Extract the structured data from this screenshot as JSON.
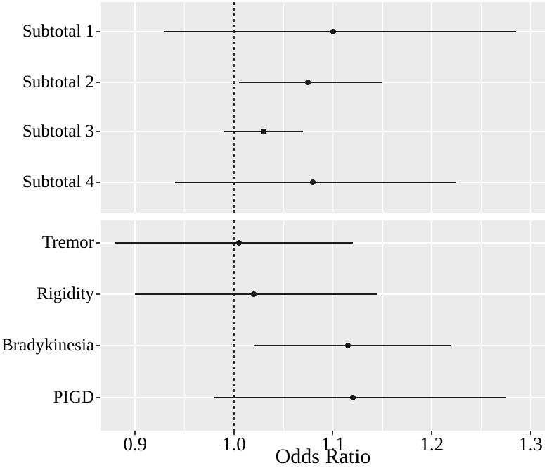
{
  "chart_data": {
    "type": "scatter",
    "subtype": "forest-plot-dot-with-ci",
    "title": "",
    "xlabel": "Odds Ratio",
    "ylabel": "",
    "x_axis": {
      "min": 0.865,
      "max": 1.315,
      "major_ticks": [
        0.9,
        1.0,
        1.1,
        1.2,
        1.3
      ],
      "minor_ticks": [
        0.95,
        1.05,
        1.15,
        1.25
      ],
      "tick_labels": [
        "0.9",
        "1.0",
        "1.1",
        "1.2",
        "1.3"
      ]
    },
    "reference_line_x": 1.0,
    "grid": "major-and-minor-vertical, major-horizontal",
    "legend": "none",
    "panels": [
      {
        "id": "subtotals",
        "rows": [
          {
            "label": "Subtotal 1",
            "or": 1.1,
            "ci_low": 0.93,
            "ci_high": 1.285
          },
          {
            "label": "Subtotal 2",
            "or": 1.075,
            "ci_low": 1.005,
            "ci_high": 1.15
          },
          {
            "label": "Subtotal 3",
            "or": 1.03,
            "ci_low": 0.99,
            "ci_high": 1.07
          },
          {
            "label": "Subtotal 4",
            "or": 1.08,
            "ci_low": 0.94,
            "ci_high": 1.225
          }
        ]
      },
      {
        "id": "motor-signs",
        "rows": [
          {
            "label": "Tremor",
            "or": 1.005,
            "ci_low": 0.88,
            "ci_high": 1.12
          },
          {
            "label": "Rigidity",
            "or": 1.02,
            "ci_low": 0.9,
            "ci_high": 1.145
          },
          {
            "label": "Bradykinesia",
            "or": 1.115,
            "ci_low": 1.02,
            "ci_high": 1.22
          },
          {
            "label": "PIGD",
            "or": 1.12,
            "ci_low": 0.98,
            "ci_high": 1.275
          }
        ]
      }
    ],
    "colors": {
      "page_background": "#ffffff",
      "panel_background": "#ebebeb",
      "gridline": "#ffffff",
      "data": "#1a1a1a",
      "reference_line": "#333333",
      "tick": "#333333",
      "text": "#000000"
    }
  }
}
